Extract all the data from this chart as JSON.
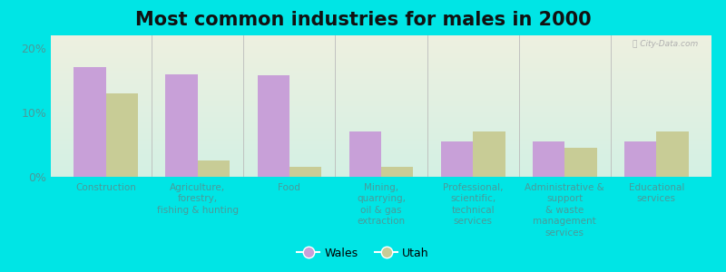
{
  "title": "Most common industries for males in 2000",
  "categories": [
    "Construction",
    "Agriculture,\nforestry,\nfishing & hunting",
    "Food",
    "Mining,\nquarrying,\noil & gas\nextraction",
    "Professional,\nscientific,\ntechnical\nservices",
    "Administrative &\nsupport\n& waste\nmanagement\nservices",
    "Educational\nservices"
  ],
  "wales_values": [
    17.0,
    16.0,
    15.8,
    7.0,
    5.5,
    5.5,
    5.5
  ],
  "utah_values": [
    13.0,
    2.5,
    1.5,
    1.5,
    7.0,
    4.5,
    7.0
  ],
  "wales_color": "#c8a0d8",
  "utah_color": "#c8cc96",
  "background_color": "#00e5e5",
  "plot_bg_color_top": "#eef0e0",
  "plot_bg_color_bottom": "#d4f0e4",
  "ylim": [
    0,
    22
  ],
  "yticks": [
    0,
    10,
    20
  ],
  "ytick_labels": [
    "0%",
    "10%",
    "20%"
  ],
  "bar_width": 0.35,
  "title_fontsize": 15,
  "label_fontsize": 7.5,
  "tick_fontsize": 9,
  "legend_labels": [
    "Wales",
    "Utah"
  ],
  "watermark": "ⓘ City-Data.com"
}
